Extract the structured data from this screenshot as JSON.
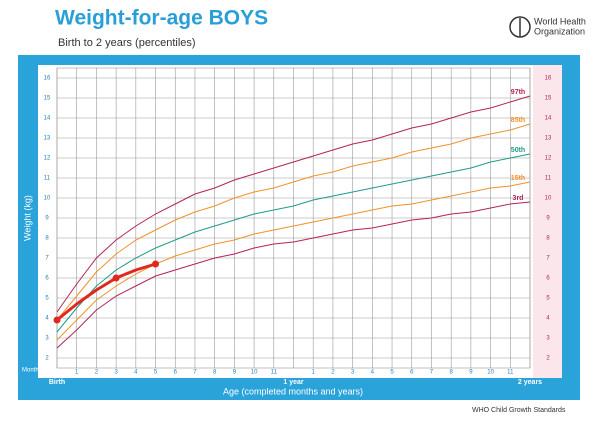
{
  "chart_data": {
    "type": "line",
    "title": "Weight-for-age BOYS",
    "subtitle": "Birth to 2 years (percentiles)",
    "organization": [
      "World Health",
      "Organization"
    ],
    "footer": "WHO Child Growth Standards",
    "y_label": "Weight (kg)",
    "x_label": "Age (completed months and years)",
    "x_unit_label": "Months",
    "xlim": [
      0,
      24
    ],
    "ylim": [
      1.5,
      16.5
    ],
    "xticks": [
      {
        "value": 0,
        "label": "Birth"
      },
      1,
      2,
      3,
      4,
      5,
      6,
      7,
      8,
      9,
      10,
      11,
      {
        "value": 12,
        "label": "1 year"
      },
      {
        "value": 13,
        "label": "1"
      },
      {
        "value": 14,
        "label": "2"
      },
      {
        "value": 15,
        "label": "3"
      },
      {
        "value": 16,
        "label": "4"
      },
      {
        "value": 17,
        "label": "5"
      },
      {
        "value": 18,
        "label": "6"
      },
      {
        "value": 19,
        "label": "7"
      },
      {
        "value": 20,
        "label": "8"
      },
      {
        "value": 21,
        "label": "9"
      },
      {
        "value": 22,
        "label": "10"
      },
      {
        "value": 23,
        "label": "11"
      },
      {
        "value": 24,
        "label": "2 years"
      }
    ],
    "yticks": [
      2,
      3,
      4,
      5,
      6,
      7,
      8,
      9,
      10,
      11,
      12,
      13,
      14,
      15,
      16
    ],
    "grid": true,
    "x": [
      0,
      1,
      2,
      3,
      4,
      5,
      6,
      7,
      8,
      9,
      10,
      11,
      12,
      13,
      14,
      15,
      16,
      17,
      18,
      19,
      20,
      21,
      22,
      23,
      24
    ],
    "series": [
      {
        "name": "97th",
        "color": "#b3245a",
        "values": [
          4.3,
          5.7,
          7.0,
          7.9,
          8.6,
          9.2,
          9.7,
          10.2,
          10.5,
          10.9,
          11.2,
          11.5,
          11.8,
          12.1,
          12.4,
          12.7,
          12.9,
          13.2,
          13.5,
          13.7,
          14.0,
          14.3,
          14.5,
          14.8,
          15.1
        ]
      },
      {
        "name": "85th",
        "color": "#f0922b",
        "values": [
          3.9,
          5.1,
          6.3,
          7.2,
          7.9,
          8.4,
          8.9,
          9.3,
          9.6,
          10.0,
          10.3,
          10.5,
          10.8,
          11.1,
          11.3,
          11.6,
          11.8,
          12.0,
          12.3,
          12.5,
          12.7,
          13.0,
          13.2,
          13.4,
          13.7
        ]
      },
      {
        "name": "50th",
        "color": "#1f9c8c",
        "values": [
          3.3,
          4.5,
          5.6,
          6.4,
          7.0,
          7.5,
          7.9,
          8.3,
          8.6,
          8.9,
          9.2,
          9.4,
          9.6,
          9.9,
          10.1,
          10.3,
          10.5,
          10.7,
          10.9,
          11.1,
          11.3,
          11.5,
          11.8,
          12.0,
          12.2
        ]
      },
      {
        "name": "15th",
        "color": "#f0922b",
        "values": [
          2.9,
          3.9,
          4.9,
          5.6,
          6.2,
          6.7,
          7.1,
          7.4,
          7.7,
          7.9,
          8.2,
          8.4,
          8.6,
          8.8,
          9.0,
          9.2,
          9.4,
          9.6,
          9.7,
          9.9,
          10.1,
          10.3,
          10.5,
          10.6,
          10.8
        ]
      },
      {
        "name": "3rd",
        "color": "#b3245a",
        "values": [
          2.5,
          3.4,
          4.4,
          5.1,
          5.6,
          6.1,
          6.4,
          6.7,
          7.0,
          7.2,
          7.5,
          7.7,
          7.8,
          8.0,
          8.2,
          8.4,
          8.5,
          8.7,
          8.9,
          9.0,
          9.2,
          9.3,
          9.5,
          9.7,
          9.8
        ]
      }
    ],
    "child": {
      "color": "#e0281e",
      "x": [
        0,
        1,
        2,
        3,
        4,
        5
      ],
      "values": [
        3.9,
        4.7,
        5.4,
        6.0,
        6.4,
        6.7
      ],
      "measurements": {
        "x": [
          0,
          3,
          5
        ],
        "values": [
          3.9,
          6.0,
          6.7
        ]
      }
    }
  }
}
